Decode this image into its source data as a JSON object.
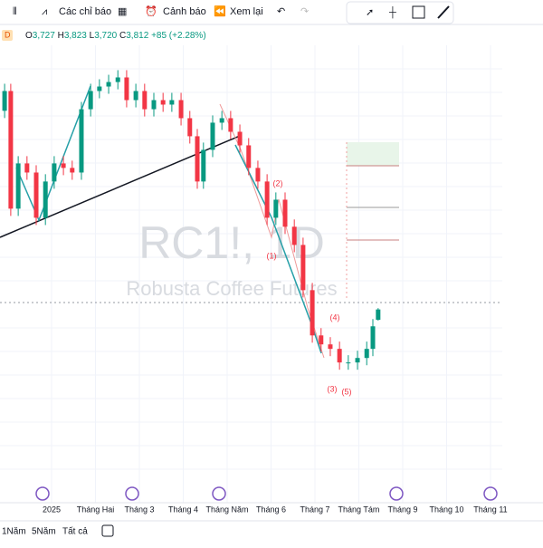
{
  "toolbar": {
    "indicators": "Các chỉ báo",
    "alerts": "Cảnh báo",
    "replay": "Xem lại"
  },
  "legend": {
    "interval": "D",
    "open_label": "O",
    "open": "3,727",
    "high_label": "H",
    "high": "3,823",
    "low_label": "L",
    "low": "3,720",
    "close_label": "C",
    "close": "3,812",
    "change": "+85 (+2.28%)"
  },
  "watermark": {
    "symbol": "RC1!, 1D",
    "name": "Robusta Coffee Futures"
  },
  "annotations": [
    "(1)",
    "(2)",
    "(3)",
    "(4)",
    "(5)"
  ],
  "ranges": [
    "1Năm",
    "5Năm",
    "Tất cả"
  ],
  "chart_data": {
    "type": "candlestick",
    "x": [
      -1.07,
      -0.93,
      -0.76,
      -0.56,
      -0.35,
      -0.14,
      0.06,
      0.27,
      0.47,
      0.68,
      0.89,
      1.09,
      1.3,
      1.51,
      1.71,
      1.92,
      2.12,
      2.33,
      2.54,
      2.74,
      2.95,
      3.15,
      3.32,
      3.46,
      3.67,
      3.88,
      4.08,
      4.29,
      4.49,
      4.7,
      4.91,
      5.11,
      5.32,
      5.53,
      5.73,
      5.94,
      6.14,
      6.35,
      6.56,
      6.76,
      6.97,
      7.18,
      7.32,
      7.44
    ],
    "open": [
      5450,
      5613,
      4643,
      5016,
      4941,
      4568,
      4867,
      5016,
      4979,
      4941,
      5463,
      5613,
      5650,
      5687,
      5725,
      5538,
      5613,
      5463,
      5538,
      5501,
      5538,
      5389,
      5240,
      4867,
      5128,
      5352,
      5389,
      5277,
      5165,
      4979,
      4867,
      4568,
      4717,
      4494,
      4344,
      3971,
      3598,
      3524,
      3487,
      3375,
      3375,
      3412,
      3487,
      3727
    ],
    "high": [
      5673,
      5673,
      5076,
      5076,
      5001,
      4927,
      5076,
      5076,
      5039,
      5523,
      5673,
      5710,
      5747,
      5785,
      5785,
      5673,
      5673,
      5598,
      5598,
      5598,
      5598,
      5449,
      5300,
      5188,
      5412,
      5449,
      5449,
      5337,
      5225,
      5039,
      4927,
      4777,
      4777,
      4554,
      4404,
      4031,
      3658,
      3584,
      3547,
      3435,
      3472,
      3547,
      3733,
      3823
    ],
    "low": [
      5390,
      4583,
      4583,
      4881,
      4508,
      4508,
      4807,
      4919,
      4881,
      4881,
      5403,
      5553,
      5590,
      5627,
      5478,
      5478,
      5403,
      5403,
      5441,
      5441,
      5329,
      5180,
      4807,
      4807,
      5068,
      5292,
      5217,
      5105,
      4919,
      4807,
      4508,
      4508,
      4434,
      4284,
      3911,
      3538,
      3464,
      3427,
      3315,
      3315,
      3315,
      3352,
      3427,
      3720
    ],
    "close": [
      5613,
      4643,
      5016,
      4941,
      4568,
      4867,
      5016,
      4979,
      4941,
      5463,
      5613,
      5650,
      5687,
      5725,
      5538,
      5613,
      5463,
      5538,
      5501,
      5538,
      5389,
      5240,
      4867,
      5128,
      5352,
      5389,
      5277,
      5165,
      4979,
      4867,
      4568,
      4717,
      4494,
      4344,
      3971,
      3598,
      3524,
      3487,
      3375,
      3375,
      3412,
      3487,
      3673,
      3812
    ],
    "up_color": "#089981",
    "down_color": "#f23645",
    "xlim": [
      -1.175,
      11.196
    ],
    "ylim": [
      2480,
      5990
    ],
    "xticks": [
      {
        "value": 0,
        "label": "2025"
      },
      {
        "value": 1,
        "label": "Tháng Hai"
      },
      {
        "value": 2,
        "label": "Tháng 3"
      },
      {
        "value": 3,
        "label": "Tháng 4"
      },
      {
        "value": 4,
        "label": "Tháng Năm"
      },
      {
        "value": 5,
        "label": "Tháng 6"
      },
      {
        "value": 6,
        "label": "Tháng 7"
      },
      {
        "value": 7,
        "label": "Tháng Tám"
      },
      {
        "value": 8,
        "label": "Tháng 9"
      },
      {
        "value": 9,
        "label": "Tháng 10"
      },
      {
        "value": 10,
        "label": "Tháng 11"
      }
    ],
    "grid": true
  }
}
